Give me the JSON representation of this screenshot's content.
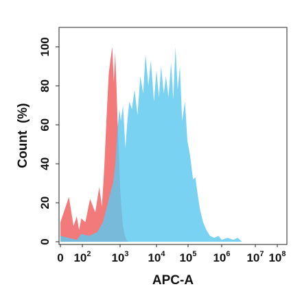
{
  "chart_data": {
    "type": "area",
    "title": "",
    "xlabel": "APC-A",
    "ylabel": "Count  (%)",
    "xscale": "biexponential",
    "xlim": [
      0,
      100000000
    ],
    "ylim": [
      0,
      110
    ],
    "y_ticks": [
      0,
      20,
      40,
      60,
      80,
      100
    ],
    "x_ticks": [
      {
        "base": "0",
        "exp": ""
      },
      {
        "base": "10",
        "exp": "2"
      },
      {
        "base": "10",
        "exp": "3"
      },
      {
        "base": "10",
        "exp": "4"
      },
      {
        "base": "10",
        "exp": "5"
      },
      {
        "base": "10",
        "exp": "6"
      },
      {
        "base": "10",
        "exp": "7"
      },
      {
        "base": "10",
        "exp": "8"
      }
    ],
    "grid": false,
    "series": [
      {
        "color": "#f26b6b",
        "fill_opacity": 0.9,
        "points": [
          [
            0,
            10
          ],
          [
            5,
            23
          ],
          [
            15,
            8
          ],
          [
            30,
            13
          ],
          [
            50,
            6
          ],
          [
            80,
            12
          ],
          [
            120,
            10
          ],
          [
            160,
            22
          ],
          [
            220,
            15
          ],
          [
            280,
            28
          ],
          [
            330,
            18
          ],
          [
            380,
            38
          ],
          [
            440,
            65
          ],
          [
            500,
            86
          ],
          [
            560,
            94
          ],
          [
            620,
            100
          ],
          [
            680,
            82
          ],
          [
            740,
            97
          ],
          [
            800,
            80
          ],
          [
            850,
            64
          ],
          [
            900,
            52
          ],
          [
            950,
            40
          ],
          [
            1000,
            28
          ],
          [
            1100,
            16
          ],
          [
            1200,
            8
          ],
          [
            1350,
            3
          ],
          [
            1500,
            1
          ],
          [
            1700,
            0
          ]
        ]
      },
      {
        "color": "#5bc8ef",
        "fill_opacity": 0.82,
        "points": [
          [
            0,
            3
          ],
          [
            30,
            1
          ],
          [
            80,
            4
          ],
          [
            150,
            3
          ],
          [
            250,
            5
          ],
          [
            350,
            10
          ],
          [
            450,
            18
          ],
          [
            550,
            25
          ],
          [
            650,
            30
          ],
          [
            750,
            40
          ],
          [
            850,
            57
          ],
          [
            950,
            68
          ],
          [
            1050,
            62
          ],
          [
            1200,
            70
          ],
          [
            1400,
            48
          ],
          [
            1600,
            63
          ],
          [
            1800,
            72
          ],
          [
            2100,
            68
          ],
          [
            2500,
            78
          ],
          [
            3000,
            65
          ],
          [
            3600,
            85
          ],
          [
            4300,
            76
          ],
          [
            5000,
            96
          ],
          [
            6000,
            80
          ],
          [
            7000,
            93
          ],
          [
            8500,
            72
          ],
          [
            10000,
            88
          ],
          [
            12000,
            74
          ],
          [
            14000,
            90
          ],
          [
            17000,
            76
          ],
          [
            20000,
            85
          ],
          [
            24000,
            74
          ],
          [
            29000,
            92
          ],
          [
            34000,
            73
          ],
          [
            40000,
            100
          ],
          [
            47000,
            78
          ],
          [
            55000,
            90
          ],
          [
            65000,
            62
          ],
          [
            80000,
            72
          ],
          [
            95000,
            52
          ],
          [
            115000,
            44
          ],
          [
            140000,
            32
          ],
          [
            165000,
            33
          ],
          [
            190000,
            25
          ],
          [
            230000,
            16
          ],
          [
            280000,
            10
          ],
          [
            350000,
            6
          ],
          [
            450000,
            3
          ],
          [
            600000,
            2
          ],
          [
            800000,
            3
          ],
          [
            1000000,
            1
          ],
          [
            1500000,
            2
          ],
          [
            2200000,
            1
          ],
          [
            3000000,
            2
          ],
          [
            4000000,
            0
          ]
        ]
      }
    ]
  }
}
